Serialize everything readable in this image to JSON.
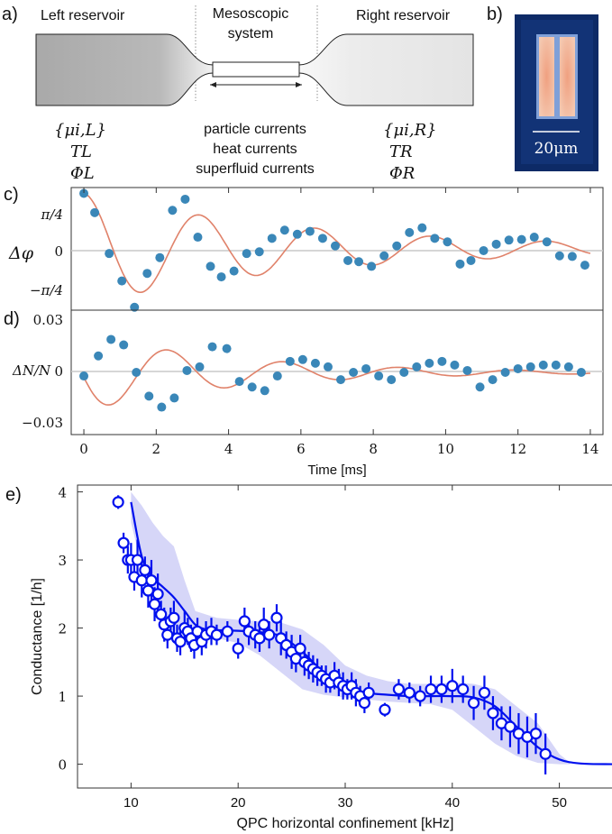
{
  "panels": {
    "a": "a)",
    "b": "b)",
    "c": "c)",
    "d": "d)",
    "e": "e)"
  },
  "schematic": {
    "left_title": "Left reservoir",
    "center_title_1": "Mesoscopic",
    "center_title_2": "system",
    "right_title": "Right reservoir",
    "left_mu": "{μi,L}",
    "left_T": "TL",
    "left_phi": "ΦL",
    "right_mu": "{μi,R}",
    "right_T": "TR",
    "right_phi": "ΦR",
    "currents_1": "particle currents",
    "currents_2": "heat currents",
    "currents_3": "superfluid currents"
  },
  "image_b": {
    "scale_label": "20μm",
    "colors": {
      "background": "#0d2a66",
      "cloud": "#e8a888"
    }
  },
  "colors": {
    "dots": "#3a87b8",
    "fit": "#e0826a",
    "axis": "#333333",
    "blue": "#0010ee",
    "band": "#c8c8f6"
  },
  "chart_data": [
    {
      "id": "c",
      "type": "scatter",
      "ylabel": "Δφ",
      "yticklabels": [
        "π/4",
        "0",
        "−π/4"
      ],
      "ylim": [
        -1.05,
        1.05
      ],
      "xlim": [
        -0.35,
        14.35
      ],
      "x": [
        0.0,
        0.3,
        0.7,
        1.05,
        1.4,
        1.75,
        2.1,
        2.45,
        2.8,
        3.15,
        3.5,
        3.8,
        4.15,
        4.5,
        4.85,
        5.2,
        5.55,
        5.9,
        6.25,
        6.6,
        6.95,
        7.3,
        7.6,
        7.95,
        8.3,
        8.65,
        9.0,
        9.35,
        9.7,
        10.05,
        10.4,
        10.7,
        11.05,
        11.4,
        11.75,
        12.1,
        12.45,
        12.8,
        13.15,
        13.5,
        13.85
      ],
      "y": [
        0.95,
        0.62,
        -0.08,
        -0.55,
        -1.0,
        -0.42,
        -0.15,
        0.66,
        0.85,
        0.2,
        -0.3,
        -0.48,
        -0.38,
        -0.08,
        -0.05,
        0.18,
        0.32,
        0.25,
        0.3,
        0.18,
        0.05,
        -0.2,
        -0.22,
        -0.3,
        -0.12,
        0.05,
        0.28,
        0.36,
        0.18,
        0.12,
        -0.26,
        -0.2,
        -0.03,
        0.08,
        0.15,
        0.16,
        0.2,
        0.12,
        -0.12,
        -0.13,
        -0.28
      ],
      "fit": {
        "amplitude": 0.95,
        "decay_ms": 6.5,
        "period_ms": 3.2,
        "phase": 0.0
      }
    },
    {
      "id": "d",
      "type": "scatter",
      "ylabel": "ΔN/N",
      "yticklabels": [
        "0.03",
        "0",
        "−0.03"
      ],
      "ylim": [
        -0.034,
        0.034
      ],
      "xlim": [
        -0.35,
        14.35
      ],
      "xticks": [
        0,
        2,
        4,
        6,
        8,
        10,
        12,
        14
      ],
      "xlabel": "Time [ms]",
      "x": [
        0.0,
        0.4,
        0.75,
        1.1,
        1.45,
        1.8,
        2.15,
        2.5,
        2.85,
        3.2,
        3.55,
        3.95,
        4.3,
        4.65,
        5.0,
        5.35,
        5.7,
        6.05,
        6.4,
        6.75,
        7.1,
        7.45,
        7.8,
        8.15,
        8.5,
        8.85,
        9.2,
        9.55,
        9.9,
        10.25,
        10.6,
        10.95,
        11.3,
        11.65,
        12.0,
        12.35,
        12.7,
        13.05,
        13.4,
        13.75
      ],
      "y": [
        -0.002,
        0.009,
        0.018,
        0.015,
        0.0,
        -0.013,
        -0.019,
        -0.014,
        0.001,
        0.003,
        0.014,
        0.013,
        -0.005,
        -0.008,
        -0.01,
        -0.002,
        0.006,
        0.007,
        0.005,
        0.003,
        -0.004,
        0.0,
        0.002,
        -0.002,
        -0.004,
        0.0,
        0.003,
        0.005,
        0.006,
        0.004,
        0.001,
        -0.008,
        -0.004,
        0.0,
        0.002,
        0.003,
        0.004,
        0.004,
        0.003,
        0.0
      ],
      "fit": {
        "amplitude": 0.021,
        "decay_ms": 4.3,
        "period_ms": 3.2,
        "phase": 1.7
      }
    },
    {
      "id": "e",
      "type": "scatter",
      "xlabel": "QPC horizontal confinement [kHz]",
      "ylabel": "Conductance [1/h]",
      "xlim": [
        5,
        55
      ],
      "ylim": [
        -0.35,
        4.1
      ],
      "xticks": [
        10,
        20,
        30,
        40,
        50
      ],
      "yticks": [
        0,
        1,
        2,
        3,
        4
      ],
      "points": [
        [
          8.8,
          3.85,
          0.1
        ],
        [
          9.3,
          3.25,
          0.15
        ],
        [
          9.7,
          3.0,
          0.2
        ],
        [
          10.0,
          3.0,
          0.25
        ],
        [
          10.3,
          2.75,
          0.2
        ],
        [
          10.6,
          3.0,
          0.3
        ],
        [
          11.0,
          2.7,
          0.25
        ],
        [
          11.3,
          2.85,
          0.2
        ],
        [
          11.6,
          2.55,
          0.25
        ],
        [
          11.9,
          2.7,
          0.3
        ],
        [
          12.2,
          2.35,
          0.25
        ],
        [
          12.5,
          2.5,
          0.3
        ],
        [
          12.8,
          2.2,
          0.2
        ],
        [
          13.1,
          2.05,
          0.25
        ],
        [
          13.4,
          1.9,
          0.2
        ],
        [
          13.7,
          2.1,
          0.2
        ],
        [
          14.0,
          2.15,
          0.25
        ],
        [
          14.3,
          1.85,
          0.2
        ],
        [
          14.6,
          1.8,
          0.2
        ],
        [
          15.0,
          2.0,
          0.25
        ],
        [
          15.3,
          1.95,
          0.2
        ],
        [
          15.6,
          1.85,
          0.2
        ],
        [
          15.9,
          1.75,
          0.2
        ],
        [
          16.2,
          1.95,
          0.2
        ],
        [
          16.6,
          1.8,
          0.2
        ],
        [
          17.0,
          1.9,
          0.2
        ],
        [
          17.5,
          1.95,
          0.2
        ],
        [
          18.0,
          1.9,
          0.15
        ],
        [
          19.0,
          1.95,
          0.15
        ],
        [
          20.0,
          1.7,
          0.15
        ],
        [
          20.6,
          2.1,
          0.2
        ],
        [
          21.0,
          1.95,
          0.2
        ],
        [
          21.6,
          1.9,
          0.2
        ],
        [
          22.0,
          1.85,
          0.2
        ],
        [
          22.4,
          2.05,
          0.25
        ],
        [
          22.9,
          1.9,
          0.2
        ],
        [
          23.6,
          2.15,
          0.2
        ],
        [
          24.0,
          1.85,
          0.25
        ],
        [
          24.5,
          1.75,
          0.2
        ],
        [
          25.0,
          1.65,
          0.25
        ],
        [
          25.4,
          1.55,
          0.2
        ],
        [
          25.8,
          1.7,
          0.2
        ],
        [
          26.2,
          1.5,
          0.2
        ],
        [
          26.6,
          1.45,
          0.2
        ],
        [
          27.0,
          1.4,
          0.2
        ],
        [
          27.4,
          1.35,
          0.2
        ],
        [
          27.8,
          1.3,
          0.15
        ],
        [
          28.2,
          1.25,
          0.2
        ],
        [
          28.6,
          1.2,
          0.15
        ],
        [
          29.0,
          1.3,
          0.2
        ],
        [
          29.4,
          1.2,
          0.2
        ],
        [
          29.8,
          1.15,
          0.2
        ],
        [
          30.2,
          1.1,
          0.15
        ],
        [
          30.6,
          1.15,
          0.2
        ],
        [
          31.0,
          1.05,
          0.2
        ],
        [
          31.4,
          1.0,
          0.15
        ],
        [
          31.8,
          0.9,
          0.15
        ],
        [
          32.2,
          1.05,
          0.15
        ],
        [
          33.7,
          0.8,
          0.1
        ],
        [
          35.0,
          1.1,
          0.15
        ],
        [
          36.0,
          1.05,
          0.15
        ],
        [
          37.0,
          1.0,
          0.15
        ],
        [
          38.0,
          1.1,
          0.2
        ],
        [
          39.0,
          1.1,
          0.2
        ],
        [
          40.0,
          1.15,
          0.25
        ],
        [
          41.0,
          1.1,
          0.2
        ],
        [
          42.0,
          0.9,
          0.25
        ],
        [
          43.0,
          1.05,
          0.25
        ],
        [
          43.8,
          0.75,
          0.25
        ],
        [
          44.6,
          0.6,
          0.25
        ],
        [
          45.4,
          0.55,
          0.3
        ],
        [
          46.2,
          0.45,
          0.3
        ],
        [
          47.0,
          0.4,
          0.3
        ],
        [
          47.8,
          0.45,
          0.3
        ],
        [
          48.7,
          0.15,
          0.3
        ]
      ],
      "curve_data_note": "",
      "curve": [
        [
          10,
          3.85
        ],
        [
          11,
          3.05
        ],
        [
          12,
          2.75
        ],
        [
          13,
          2.6
        ],
        [
          14,
          2.45
        ],
        [
          15,
          2.25
        ],
        [
          16,
          2.05
        ],
        [
          17,
          1.98
        ],
        [
          18,
          1.97
        ],
        [
          20,
          1.96
        ],
        [
          22,
          1.94
        ],
        [
          24,
          1.88
        ],
        [
          26,
          1.65
        ],
        [
          28,
          1.35
        ],
        [
          30,
          1.15
        ],
        [
          32,
          1.05
        ],
        [
          34,
          1.02
        ],
        [
          36,
          1.0
        ],
        [
          38,
          1.0
        ],
        [
          40,
          1.0
        ],
        [
          42,
          0.98
        ],
        [
          44,
          0.85
        ],
        [
          46,
          0.55
        ],
        [
          48,
          0.25
        ],
        [
          50,
          0.07
        ],
        [
          52,
          0.01
        ],
        [
          55,
          0.0
        ]
      ],
      "band_upper": [
        [
          10,
          4.0
        ],
        [
          11,
          3.8
        ],
        [
          12,
          3.55
        ],
        [
          13,
          3.35
        ],
        [
          14,
          3.2
        ],
        [
          15,
          2.7
        ],
        [
          16,
          2.25
        ],
        [
          18,
          2.15
        ],
        [
          20,
          2.12
        ],
        [
          22,
          2.1
        ],
        [
          24,
          2.08
        ],
        [
          26,
          1.98
        ],
        [
          28,
          1.75
        ],
        [
          30,
          1.45
        ],
        [
          32,
          1.3
        ],
        [
          34,
          1.22
        ],
        [
          36,
          1.18
        ],
        [
          38,
          1.18
        ],
        [
          40,
          1.2
        ],
        [
          42,
          1.18
        ],
        [
          44,
          1.1
        ],
        [
          46,
          0.85
        ],
        [
          48,
          0.6
        ],
        [
          50,
          0.15
        ],
        [
          51,
          0.02
        ]
      ],
      "band_lower": [
        [
          10,
          3.55
        ],
        [
          11,
          2.9
        ],
        [
          12,
          2.45
        ],
        [
          13,
          2.05
        ],
        [
          14,
          1.95
        ],
        [
          15,
          1.9
        ],
        [
          16,
          1.88
        ],
        [
          18,
          1.85
        ],
        [
          20,
          1.78
        ],
        [
          22,
          1.6
        ],
        [
          24,
          1.35
        ],
        [
          26,
          1.1
        ],
        [
          28,
          1.02
        ],
        [
          30,
          0.98
        ],
        [
          32,
          0.95
        ],
        [
          34,
          0.92
        ],
        [
          36,
          0.9
        ],
        [
          38,
          0.88
        ],
        [
          40,
          0.8
        ],
        [
          42,
          0.55
        ],
        [
          44,
          0.3
        ],
        [
          46,
          0.12
        ],
        [
          48,
          0.02
        ],
        [
          50,
          0.0
        ],
        [
          51,
          0.0
        ]
      ]
    }
  ]
}
